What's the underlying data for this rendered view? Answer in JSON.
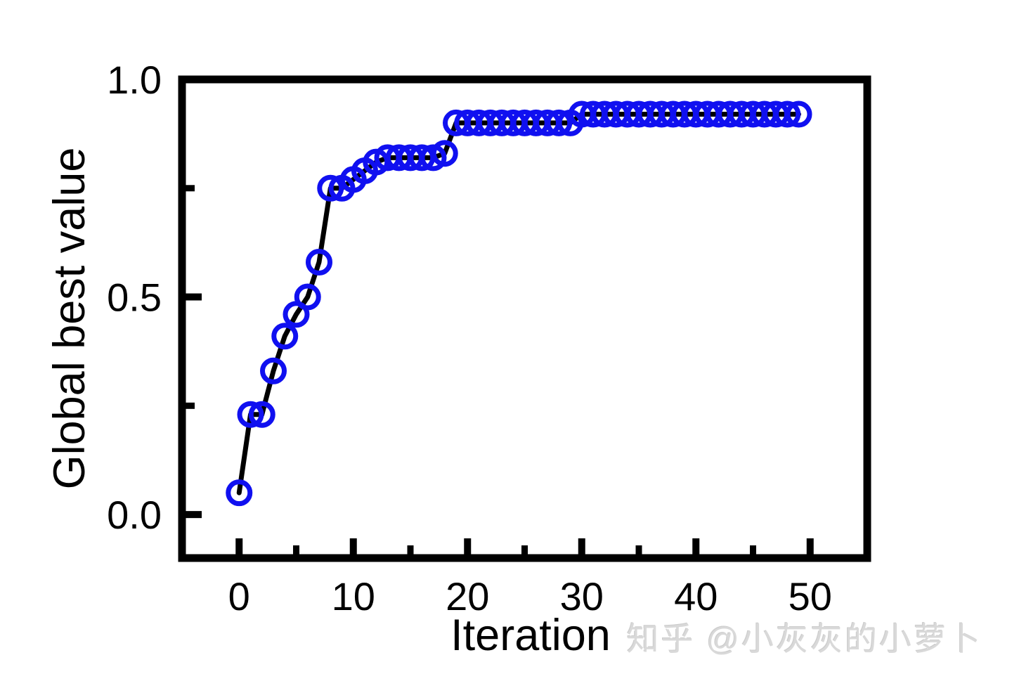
{
  "watermark": {
    "text": "知乎 @小灰灰的小萝卜",
    "color": "#d9d9d9"
  },
  "chart_data": {
    "type": "line",
    "title": "",
    "xlabel": "Iteration",
    "ylabel": "Global best value",
    "xlim": [
      -5,
      55
    ],
    "ylim": [
      -0.1,
      1.0
    ],
    "x_major_ticks": [
      0,
      10,
      20,
      30,
      40,
      50
    ],
    "x_major_tick_labels": [
      "0",
      "10",
      "20",
      "30",
      "40",
      "50"
    ],
    "x_minor_ticks": [
      5,
      15,
      25,
      35,
      45
    ],
    "y_major_ticks": [
      0.0,
      0.5,
      1.0
    ],
    "y_major_tick_labels": [
      "0.0",
      "0.5",
      "1.0"
    ],
    "y_minor_ticks": [
      0.25,
      0.75
    ],
    "grid": false,
    "legend": null,
    "line_color": "#000000",
    "line_width": 7,
    "marker_shape": "open-circle",
    "marker_color": "#1010f0",
    "marker_radius": 15.5,
    "marker_stroke_width": 7,
    "frame_color": "#000000",
    "frame_width": 11,
    "series": [
      {
        "name": "Global best value",
        "x": [
          0,
          1,
          2,
          3,
          4,
          5,
          6,
          7,
          8,
          9,
          10,
          11,
          12,
          13,
          14,
          15,
          16,
          17,
          18,
          19,
          20,
          21,
          22,
          23,
          24,
          25,
          26,
          27,
          28,
          29,
          30,
          31,
          32,
          33,
          34,
          35,
          36,
          37,
          38,
          39,
          40,
          41,
          42,
          43,
          44,
          45,
          46,
          47,
          48,
          49
        ],
        "y": [
          0.05,
          0.23,
          0.23,
          0.33,
          0.41,
          0.46,
          0.5,
          0.58,
          0.75,
          0.75,
          0.77,
          0.79,
          0.81,
          0.82,
          0.82,
          0.82,
          0.82,
          0.82,
          0.83,
          0.9,
          0.9,
          0.9,
          0.9,
          0.9,
          0.9,
          0.9,
          0.9,
          0.9,
          0.9,
          0.9,
          0.92,
          0.92,
          0.92,
          0.92,
          0.92,
          0.92,
          0.92,
          0.92,
          0.92,
          0.92,
          0.92,
          0.92,
          0.92,
          0.92,
          0.92,
          0.92,
          0.92,
          0.92,
          0.92,
          0.92
        ]
      }
    ]
  }
}
